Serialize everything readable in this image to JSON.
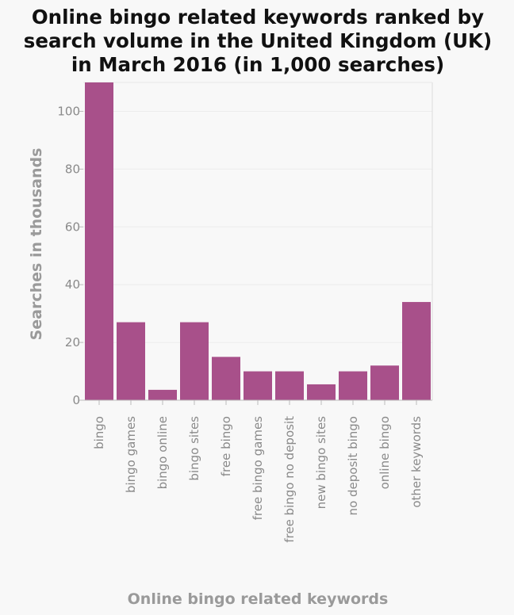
{
  "chart_data": {
    "type": "bar",
    "title_lines": [
      "Online bingo related keywords ranked by",
      "search volume in the United Kingdom (UK)",
      "in March 2016 (in 1,000 searches)"
    ],
    "xlabel": "Online bingo related keywords",
    "ylabel": "Searches in thousands",
    "categories": [
      "bingo",
      "bingo games",
      "bingo online",
      "bingo sites",
      "free bingo",
      "free bingo games",
      "free bingo no deposit",
      "new bingo sites",
      "no deposit bingo",
      "online bingo",
      "other keywords"
    ],
    "values": [
      110,
      27,
      3.6,
      27,
      15,
      10,
      10,
      5.5,
      10,
      12,
      34
    ],
    "yticks": [
      0,
      20,
      40,
      60,
      80,
      100
    ],
    "ylim": [
      0,
      110
    ],
    "grid": true,
    "bar_color": "#a8508a"
  }
}
